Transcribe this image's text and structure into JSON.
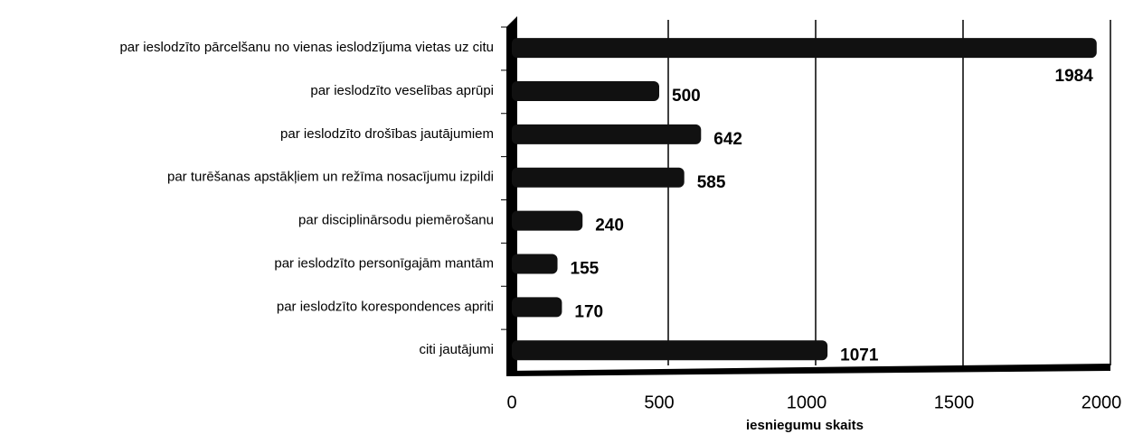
{
  "chart_data": {
    "type": "bar",
    "orientation": "horizontal",
    "x_label": "iesniegumu skaits",
    "categories": [
      "par ieslodzīto pārcelšanu no vienas ieslodzījuma vietas uz citu",
      "par ieslodzīto veselības aprūpi",
      "par ieslodzīto drošības jautājumiem",
      "par turēšanas apstākļiem un režīma nosacījumu izpildi",
      "par disciplinārsodu piemērošanu",
      "par ieslodzīto personīgajām mantām",
      "par ieslodzīto korespondences apriti",
      "citi jautājumi"
    ],
    "values": [
      1984,
      500,
      642,
      585,
      240,
      155,
      170,
      1071
    ],
    "color": "#111111",
    "xlim": [
      0,
      2000
    ],
    "xticks": [
      0,
      500,
      1000,
      1500,
      2000
    ],
    "grid": true
  }
}
